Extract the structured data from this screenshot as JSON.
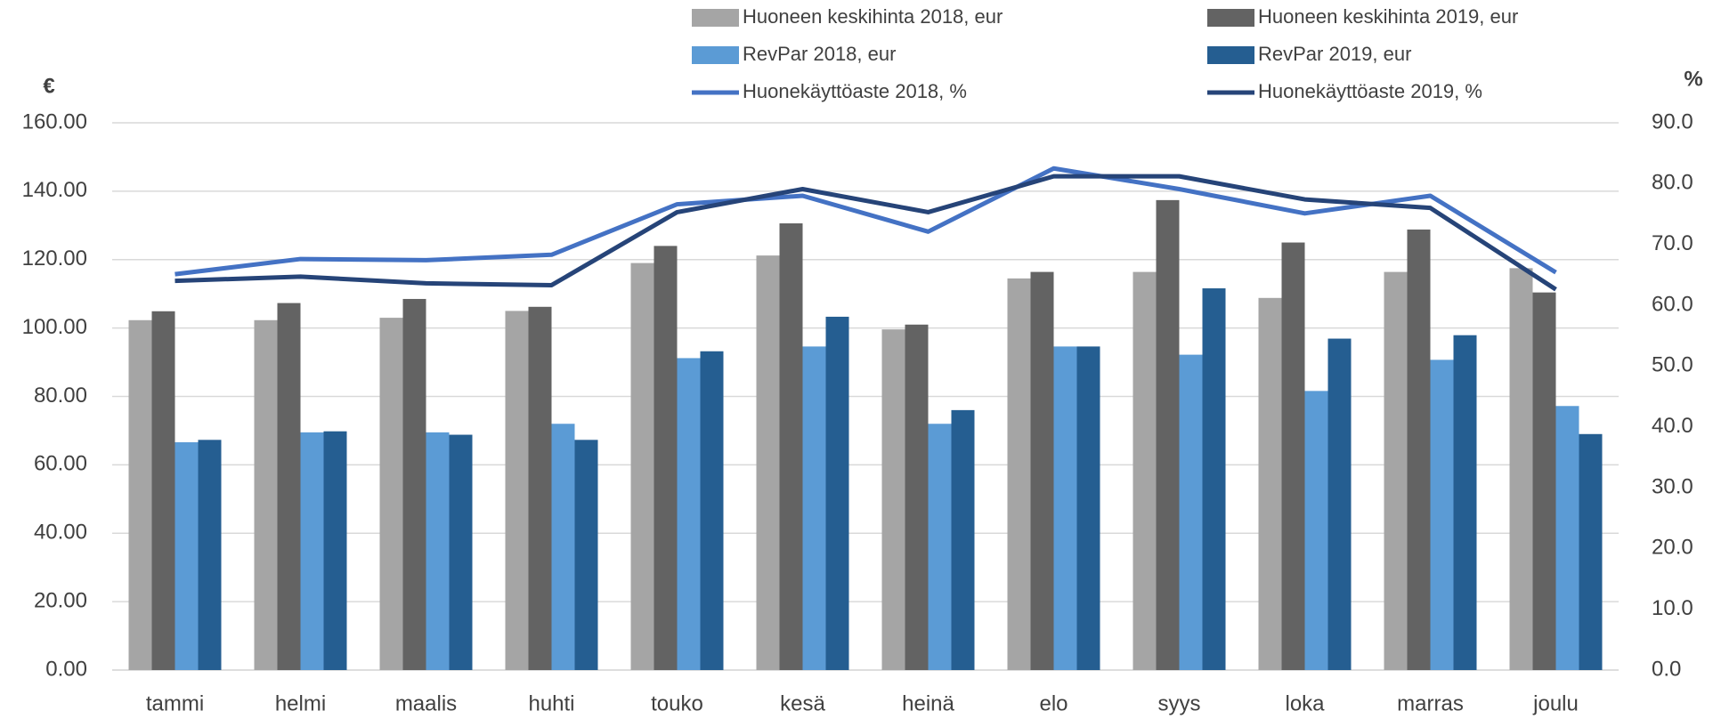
{
  "chart_data": {
    "type": "bar",
    "ylabel": "€",
    "y2label": "%",
    "categories": [
      "tammi",
      "helmi",
      "maalis",
      "huhti",
      "touko",
      "kesä",
      "heinä",
      "elo",
      "syys",
      "loka",
      "marras",
      "joulu"
    ],
    "series": [
      {
        "name": "Huoneen keskihinta 2018, eur",
        "color": "#a5a5a5",
        "values": [
          102.3,
          102.3,
          103,
          105,
          119,
          121.2,
          99.6,
          114.5,
          116.4,
          108.8,
          116.4,
          117.5
        ]
      },
      {
        "name": "Huoneen keskihinta 2019, eur",
        "color": "#636363",
        "values": [
          104.9,
          107.3,
          108.5,
          106.2,
          124,
          130.6,
          101,
          116.4,
          137.4,
          125,
          128.8,
          110.4
        ]
      },
      {
        "name": "RevPar 2018, eur",
        "color": "#5b9bd5",
        "values": [
          66.6,
          69.5,
          69.5,
          72,
          91.2,
          94.6,
          72,
          94.6,
          92.2,
          81.6,
          90.7,
          77.2
        ]
      },
      {
        "name": "RevPar 2019, eur",
        "color": "#255e91",
        "values": [
          67.3,
          69.8,
          68.8,
          67.3,
          93.2,
          103.3,
          76,
          94.6,
          111.6,
          96.9,
          97.9,
          69
        ]
      },
      {
        "name": "Huonekäyttöaste 2018, %",
        "color": "#4472c4",
        "type": "line",
        "axis": "y2",
        "values": [
          65.1,
          67.6,
          67.4,
          68.3,
          76.6,
          78,
          72.1,
          82.5,
          79.1,
          75.1,
          78,
          65.4
        ]
      },
      {
        "name": "Huonekäyttöaste 2019, %",
        "color": "#264478",
        "type": "line",
        "axis": "y2",
        "values": [
          64,
          64.7,
          63.6,
          63.3,
          75.3,
          79.1,
          75.3,
          81.2,
          81.2,
          77.4,
          76,
          62.6
        ]
      }
    ],
    "ylim": [
      0,
      160
    ],
    "yticks": [
      {
        "value": 0,
        "label": "0.00"
      },
      {
        "value": 20,
        "label": "20.00"
      },
      {
        "value": 40,
        "label": "40.00"
      },
      {
        "value": 60,
        "label": "60.00"
      },
      {
        "value": 80,
        "label": "80.00"
      },
      {
        "value": 100,
        "label": "100.00"
      },
      {
        "value": 120,
        "label": "120.00"
      },
      {
        "value": 140,
        "label": "140.00"
      },
      {
        "value": 160,
        "label": "160.00"
      }
    ],
    "y2lim": [
      0,
      90
    ],
    "y2ticks": [
      {
        "value": 0,
        "label": "0.0"
      },
      {
        "value": 10,
        "label": "10.0"
      },
      {
        "value": 20,
        "label": "20.0"
      },
      {
        "value": 30,
        "label": "30.0"
      },
      {
        "value": 40,
        "label": "40.0"
      },
      {
        "value": 50,
        "label": "50.0"
      },
      {
        "value": 60,
        "label": "60.0"
      },
      {
        "value": 70,
        "label": "70.0"
      },
      {
        "value": 80,
        "label": "80.0"
      },
      {
        "value": 90,
        "label": "90.0"
      }
    ],
    "grid": true,
    "legend": "top"
  }
}
